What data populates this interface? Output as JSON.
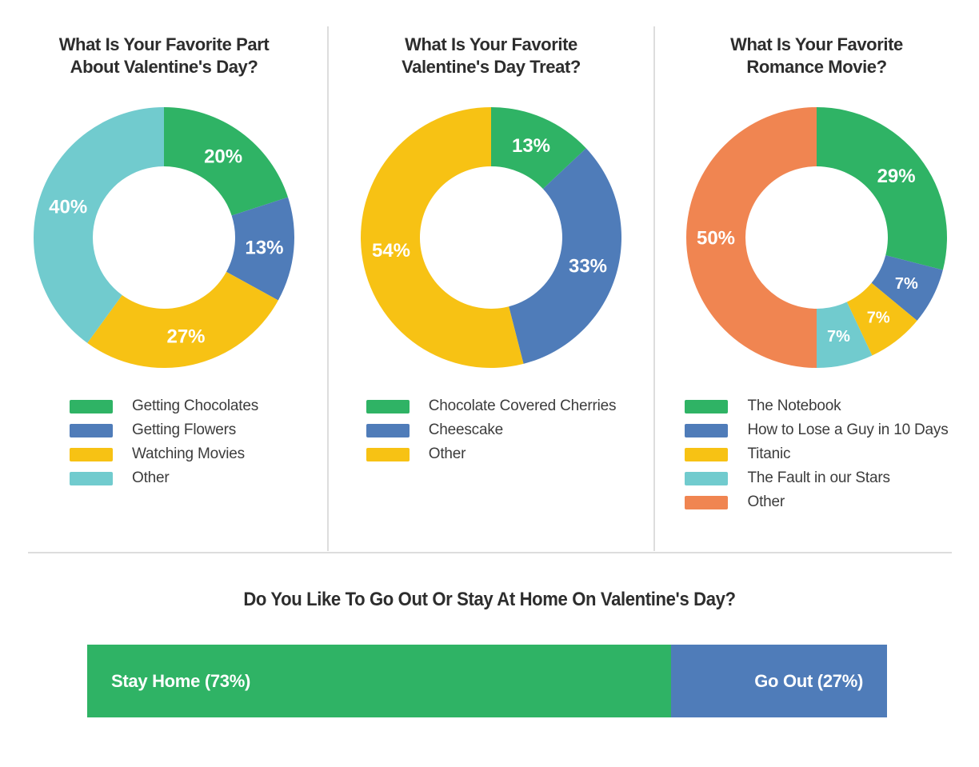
{
  "colors": {
    "green": "#2fb365",
    "blue": "#4f7cb9",
    "yellow": "#f7c214",
    "teal": "#71cbce",
    "orange": "#f08551",
    "title_text": "#2d2d2d",
    "legend_text": "#3c3c3c",
    "divider": "#dddddd",
    "slice_label_text": "#ffffff"
  },
  "chart_data": [
    {
      "type": "donut",
      "title": "What Is Your Favorite Part\nAbout Valentine's Day?",
      "start_angle_deg": 0,
      "direction": "clockwise",
      "slices": [
        {
          "label": "Getting Chocolates",
          "value": 20,
          "display": "20%",
          "color": "#2fb365"
        },
        {
          "label": "Getting Flowers",
          "value": 13,
          "display": "13%",
          "color": "#4f7cb9"
        },
        {
          "label": "Watching Movies",
          "value": 27,
          "display": "27%",
          "color": "#f7c214"
        },
        {
          "label": "Other",
          "value": 40,
          "display": "40%",
          "color": "#71cbce"
        }
      ],
      "legend_position": "bottom"
    },
    {
      "type": "donut",
      "title": "What Is Your Favorite\nValentine's Day Treat?",
      "start_angle_deg": 0,
      "direction": "clockwise",
      "slices": [
        {
          "label": "Chocolate Covered Cherries",
          "value": 13,
          "display": "13%",
          "color": "#2fb365"
        },
        {
          "label": "Cheescake",
          "value": 33,
          "display": "33%",
          "color": "#4f7cb9"
        },
        {
          "label": "Other",
          "value": 54,
          "display": "54%",
          "color": "#f7c214"
        }
      ],
      "legend_position": "bottom"
    },
    {
      "type": "donut",
      "title": "What Is Your Favorite\nRomance Movie?",
      "start_angle_deg": 0,
      "direction": "clockwise",
      "slices": [
        {
          "label": "The Notebook",
          "value": 29,
          "display": "29%",
          "color": "#2fb365"
        },
        {
          "label": "How to Lose a Guy in 10 Days",
          "value": 7,
          "display": "7%",
          "color": "#4f7cb9"
        },
        {
          "label": "Titanic",
          "value": 7,
          "display": "7%",
          "color": "#f7c214"
        },
        {
          "label": "The Fault in our Stars",
          "value": 7,
          "display": "7%",
          "color": "#71cbce"
        },
        {
          "label": "Other",
          "value": 50,
          "display": "50%",
          "color": "#f08551"
        }
      ],
      "legend_position": "bottom"
    },
    {
      "type": "stacked_bar",
      "title": "Do You Like To Go Out Or Stay At Home On Valentine's Day?",
      "xlim": [
        0,
        100
      ],
      "segments": [
        {
          "label": "Stay Home",
          "value": 73,
          "display": "Stay Home (73%)",
          "color": "#2fb365",
          "label_align": "start"
        },
        {
          "label": "Go Out",
          "value": 27,
          "display": "Go Out (27%)",
          "color": "#4f7cb9",
          "label_align": "end"
        }
      ]
    }
  ]
}
